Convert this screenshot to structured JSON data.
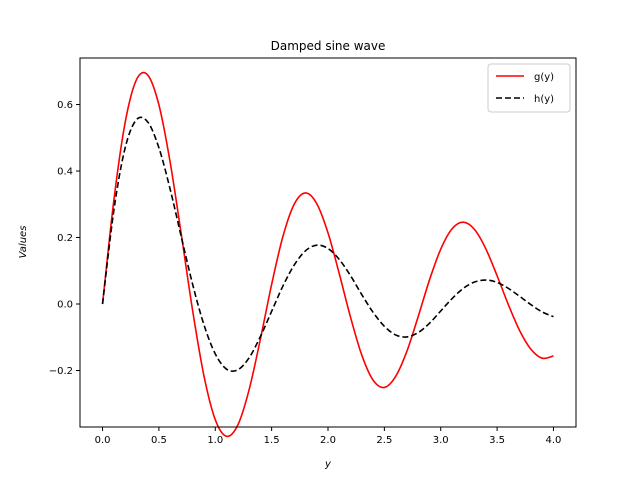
{
  "chart_data": {
    "type": "line",
    "title": "Damped sine wave",
    "xlabel": "y",
    "ylabel": "Values",
    "xlim": [
      -0.2,
      4.2
    ],
    "ylim": [
      -0.37,
      0.74
    ],
    "xticks": [
      0.0,
      0.5,
      1.0,
      1.5,
      2.0,
      2.5,
      3.0,
      3.5,
      4.0
    ],
    "xtick_labels": [
      "0.0",
      "0.5",
      "1.0",
      "1.5",
      "2.0",
      "2.5",
      "3.0",
      "3.5",
      "4.0"
    ],
    "yticks": [
      -0.2,
      0.0,
      0.2,
      0.4,
      0.6
    ],
    "ytick_labels": [
      "−0.2",
      "0.0",
      "0.2",
      "0.4",
      "0.6"
    ],
    "grid": false,
    "legend_position": "top-right",
    "x": [
      0.0,
      0.1,
      0.2,
      0.3,
      0.4,
      0.5,
      0.6,
      0.7,
      0.8,
      0.9,
      1.0,
      1.1,
      1.2,
      1.3,
      1.4,
      1.5,
      1.6,
      1.7,
      1.8,
      1.9,
      2.0,
      2.1,
      2.2,
      2.3,
      2.4,
      2.5,
      2.6,
      2.7,
      2.8,
      2.9,
      3.0,
      3.1,
      3.2,
      3.3,
      3.4,
      3.5,
      3.6,
      3.7,
      3.8,
      3.9,
      4.0
    ],
    "series": [
      {
        "name": "g(y)",
        "color": "#ff0000",
        "dash": "solid",
        "values": [
          0.0,
          0.311,
          0.545,
          0.674,
          0.689,
          0.599,
          0.426,
          0.206,
          -0.022,
          -0.217,
          -0.348,
          -0.398,
          -0.364,
          -0.258,
          -0.106,
          0.059,
          0.203,
          0.3,
          0.334,
          0.302,
          0.214,
          0.091,
          -0.04,
          -0.154,
          -0.229,
          -0.251,
          -0.218,
          -0.142,
          -0.038,
          0.072,
          0.165,
          0.226,
          0.246,
          0.224,
          0.166,
          0.085,
          -0.002,
          -0.08,
          -0.136,
          -0.163,
          -0.156
        ]
      },
      {
        "name": "h(y)",
        "color": "#000000",
        "dash": "dashed",
        "values": [
          0.0,
          0.281,
          0.469,
          0.554,
          0.548,
          0.47,
          0.345,
          0.2,
          0.058,
          -0.063,
          -0.15,
          -0.196,
          -0.198,
          -0.162,
          -0.098,
          -0.022,
          0.054,
          0.117,
          0.16,
          0.177,
          0.167,
          0.134,
          0.085,
          0.028,
          -0.025,
          -0.067,
          -0.093,
          -0.099,
          -0.086,
          -0.058,
          -0.021,
          0.016,
          0.047,
          0.066,
          0.072,
          0.065,
          0.047,
          0.023,
          -0.002,
          -0.024,
          -0.038
        ]
      }
    ]
  }
}
